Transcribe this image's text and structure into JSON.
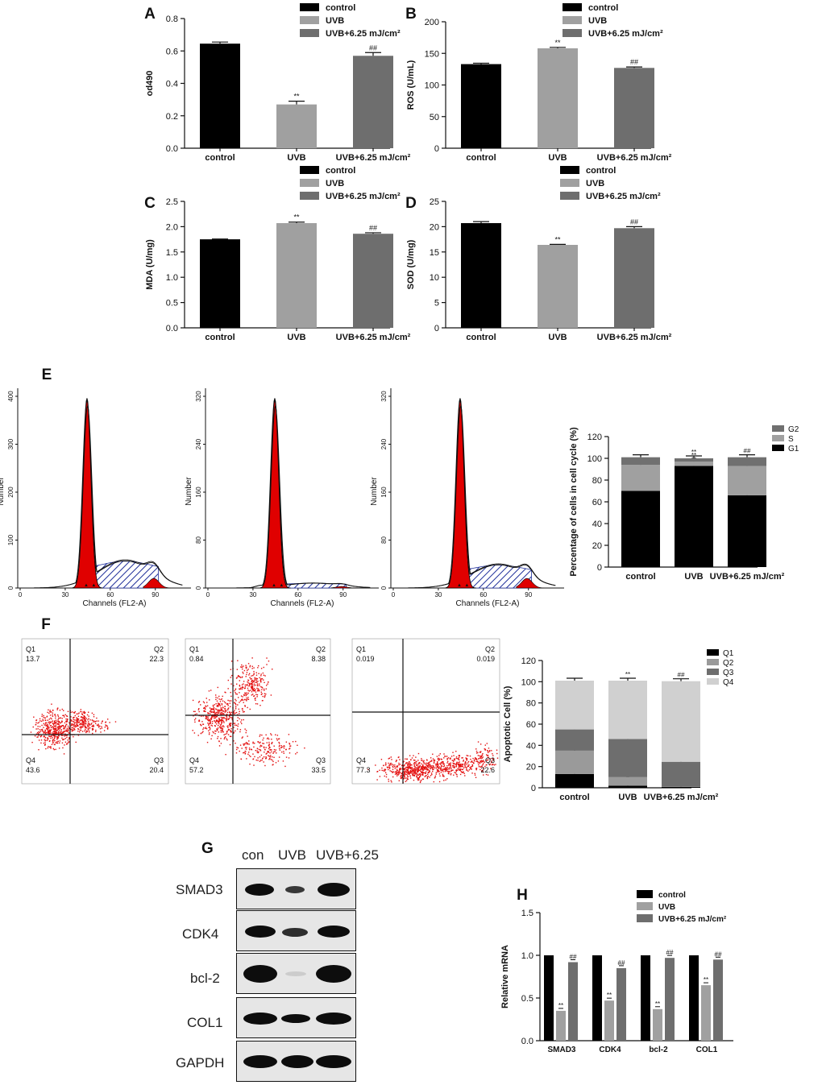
{
  "colors": {
    "control": "#000000",
    "uvb": "#a0a0a0",
    "treat": "#6e6e6e",
    "red": "#e00000",
    "hatch": "#1f2f9a",
    "g2": "#707070",
    "s": "#a0a0a0",
    "g1": "#000000",
    "q1": "#000000",
    "q2": "#9a9a9a",
    "q3": "#6e6e6e",
    "q4": "#d0d0d0"
  },
  "panels": {
    "A": "A",
    "B": "B",
    "C": "C",
    "D": "D",
    "E": "E",
    "F": "F",
    "G": "G",
    "H": "H"
  },
  "legend": {
    "control": "control",
    "uvb": "UVB",
    "treat": "UVB+6.25 mJ/cm²"
  },
  "chart_data": [
    {
      "id": "A",
      "type": "bar",
      "categories": [
        "control",
        "UVB",
        "UVB+6.25 mJ/cm²"
      ],
      "values": [
        0.645,
        0.27,
        0.57
      ],
      "errors": [
        0.01,
        0.02,
        0.02
      ],
      "ylabel": "od490",
      "ylim": [
        0,
        0.8
      ],
      "yticks": [
        "0.0",
        "0.2",
        "0.4",
        "0.6",
        "0.8"
      ],
      "annotations": [
        "",
        "**",
        "##"
      ]
    },
    {
      "id": "B",
      "type": "bar",
      "categories": [
        "control",
        "UVB",
        "UVB+6.25 mJ/cm²"
      ],
      "values": [
        133,
        158,
        127
      ],
      "errors": [
        1.5,
        1.5,
        1.5
      ],
      "ylabel": "ROS (U/mL)",
      "ylim": [
        0,
        200
      ],
      "yticks": [
        "0",
        "50",
        "100",
        "150",
        "200"
      ],
      "annotations": [
        "",
        "**",
        "##"
      ]
    },
    {
      "id": "C",
      "type": "bar",
      "categories": [
        "control",
        "UVB",
        "UVB+6.25 mJ/cm²"
      ],
      "values": [
        1.75,
        2.07,
        1.86
      ],
      "errors": [
        0.005,
        0.02,
        0.02
      ],
      "ylabel": "MDA (U/mg)",
      "ylim": [
        0,
        2.5
      ],
      "yticks": [
        "0.0",
        "0.5",
        "1.0",
        "1.5",
        "2.0",
        "2.5"
      ],
      "annotations": [
        "",
        "**",
        "##"
      ]
    },
    {
      "id": "D",
      "type": "bar",
      "categories": [
        "control",
        "UVB",
        "UVB+6.25 mJ/cm²"
      ],
      "values": [
        20.7,
        16.4,
        19.7
      ],
      "errors": [
        0.3,
        0.1,
        0.3
      ],
      "ylabel": "SOD (U/mg)",
      "ylim": [
        0,
        25
      ],
      "yticks": [
        "0",
        "5",
        "10",
        "15",
        "20",
        "25"
      ],
      "annotations": [
        "",
        "**",
        "##"
      ]
    },
    {
      "id": "E",
      "type": "stacked-bar",
      "categories": [
        "control",
        "UVB",
        "UVB+6.25 mJ/cm²"
      ],
      "ylabel": "Percentage of cells in cell cycle (%)",
      "ylim": [
        0,
        120
      ],
      "yticks": [
        "0",
        "20",
        "40",
        "60",
        "80",
        "100",
        "120"
      ],
      "series": [
        {
          "name": "G1",
          "values": [
            70,
            93,
            66
          ]
        },
        {
          "name": "S",
          "values": [
            24,
            4,
            27
          ]
        },
        {
          "name": "G2",
          "values": [
            7,
            3,
            8
          ]
        }
      ],
      "legend": [
        "G2",
        "S",
        "G1"
      ],
      "annotations": [
        "",
        "**",
        "##"
      ]
    },
    {
      "id": "F",
      "type": "stacked-bar",
      "categories": [
        "control",
        "UVB",
        "UVB+6.25 mJ/cm²"
      ],
      "ylabel": "Apoptotic Cell (%)",
      "ylim": [
        0,
        120
      ],
      "yticks": [
        "0",
        "20",
        "40",
        "60",
        "80",
        "100",
        "120"
      ],
      "series": [
        {
          "name": "Q1",
          "values": [
            13,
            2,
            1
          ]
        },
        {
          "name": "Q2",
          "values": [
            22,
            8,
            0.5
          ]
        },
        {
          "name": "Q3",
          "values": [
            20,
            36,
            23
          ]
        },
        {
          "name": "Q4",
          "values": [
            46,
            55,
            76
          ]
        }
      ],
      "legend": [
        "Q1",
        "Q2",
        "Q3",
        "Q4"
      ],
      "annotations": [
        "",
        "**",
        "##"
      ]
    },
    {
      "id": "H",
      "type": "grouped-bar",
      "categories": [
        "SMAD3",
        "CDK4",
        "bcl-2",
        "COL1"
      ],
      "ylabel": "Relative mRNA",
      "ylim": [
        0,
        1.5
      ],
      "yticks": [
        "0.0",
        "0.5",
        "1.0",
        "1.5"
      ],
      "series": [
        {
          "name": "control",
          "values": [
            1.0,
            1.0,
            1.0,
            1.0
          ]
        },
        {
          "name": "UVB",
          "values": [
            0.35,
            0.47,
            0.37,
            0.65
          ]
        },
        {
          "name": "UVB+6.25 mJ/cm²",
          "values": [
            0.92,
            0.85,
            0.97,
            0.95
          ]
        }
      ],
      "annotations": [
        "**",
        "##"
      ]
    }
  ],
  "histograms": {
    "xlabel": "Channels (FL2-A)",
    "ylabel": "Number",
    "xticks": [
      "0",
      "30",
      "60",
      "90"
    ],
    "yticks1": [
      "0",
      "100",
      "200",
      "300",
      "400"
    ],
    "yticks2": [
      "0",
      "80",
      "160",
      "240",
      "320"
    ],
    "yticks3": [
      "0",
      "80",
      "160",
      "240",
      "320"
    ]
  },
  "scatter": {
    "quadrants": [
      {
        "q1": "13.7",
        "q2": "22.3",
        "q3": "20.4",
        "q4": "43.6"
      },
      {
        "q1": "0.84",
        "q2": "8.38",
        "q3": "33.5",
        "q4": "57.2"
      },
      {
        "q1": "0.019",
        "q2": "0.019",
        "q3": "22.6",
        "q4": "77.3"
      }
    ],
    "qnames": {
      "q1": "Q1",
      "q2": "Q2",
      "q3": "Q3",
      "q4": "Q4"
    }
  },
  "blot": {
    "columns": [
      "con",
      "UVB",
      "UVB+6.25"
    ],
    "rows": [
      "SMAD3",
      "CDK4",
      "bcl-2",
      "COL1",
      "GAPDH"
    ]
  }
}
